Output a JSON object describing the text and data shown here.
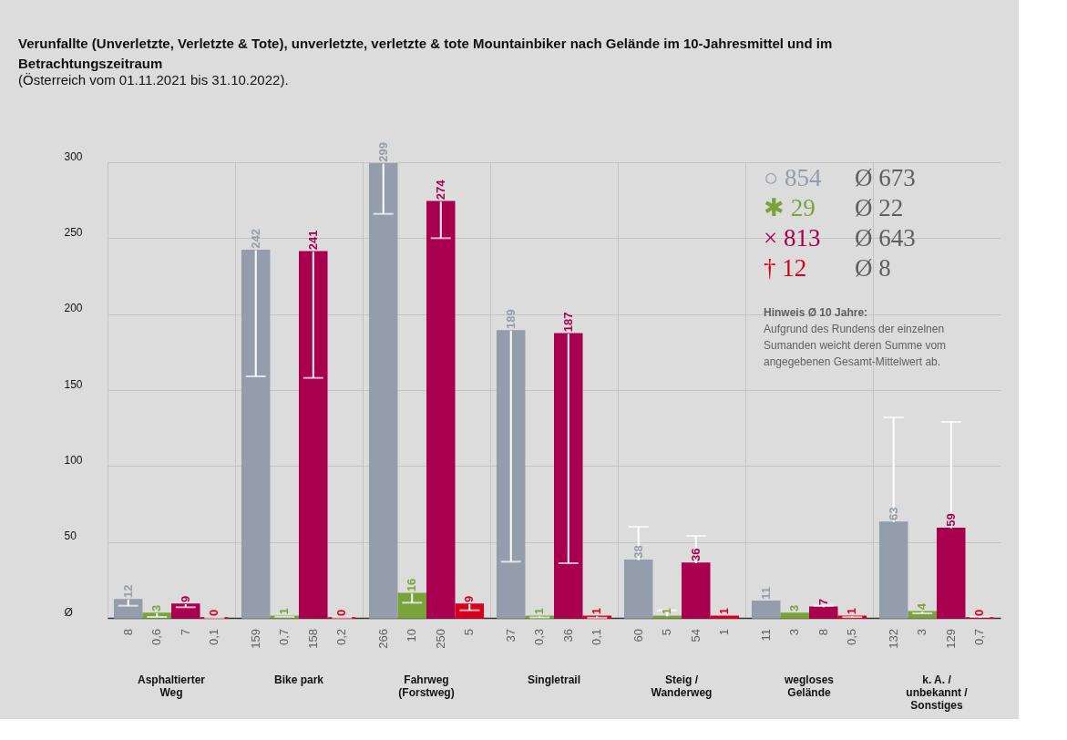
{
  "chart_data": {
    "type": "bar",
    "title": "Verunfallte (Unverletzte, Verletzte & Tote), unverletzte, verletzte & tote Mountainbiker nach Gelände im 10-Jahresmittel und im Betrachtungszeitraum",
    "subtitle": "(Österreich vom 01.11.2021 bis 31.10.2022).",
    "categories": [
      "Asphaltierter Weg",
      "Bike park",
      "Fahrweg (Forstweg)",
      "Singletrail",
      "Steig / Wanderweg",
      "wegloses Gelände",
      "k. A. / unbekannt / Sonstiges"
    ],
    "series": [
      {
        "color": "#939dab",
        "values": [
          12,
          242,
          299,
          189,
          38,
          11,
          63
        ],
        "errors": [
          [
            8,
            12
          ],
          [
            159,
            242
          ],
          [
            266,
            299
          ],
          [
            37,
            189
          ],
          [
            38,
            60
          ],
          [
            11,
            11
          ],
          [
            63,
            132
          ]
        ]
      },
      {
        "color": "#7aa33c",
        "values": [
          3,
          1,
          16,
          1,
          1,
          3,
          4
        ],
        "errors": [
          [
            0.6,
            3
          ],
          [
            0.7,
            1
          ],
          [
            10,
            16
          ],
          [
            0.3,
            1
          ],
          [
            1,
            5
          ],
          [
            3,
            3
          ],
          [
            3,
            4
          ]
        ]
      },
      {
        "color": "#a8004f",
        "values": [
          9,
          241,
          274,
          187,
          36,
          7,
          59
        ],
        "errors": [
          [
            7,
            9
          ],
          [
            158,
            241
          ],
          [
            250,
            274
          ],
          [
            36,
            187
          ],
          [
            36,
            54
          ],
          [
            7,
            8
          ],
          [
            59,
            129
          ]
        ]
      },
      {
        "color": "#d7001e",
        "values": [
          0,
          0,
          9,
          1,
          1,
          1,
          0
        ],
        "errors": [
          [
            0,
            0.1
          ],
          [
            0,
            0.2
          ],
          [
            5,
            9
          ],
          [
            0.1,
            1
          ],
          [
            1,
            1
          ],
          [
            0.5,
            1
          ],
          [
            0,
            0.7
          ]
        ]
      }
    ],
    "data_labels": true,
    "ylim": [
      0,
      300
    ],
    "yticks": [
      {
        "value": 0,
        "label": "Ø"
      },
      50,
      100,
      150,
      200,
      250,
      300
    ],
    "grid": true,
    "annotations": [
      "8",
      "0,6",
      "7",
      "0,1",
      "159",
      "0,7",
      "158",
      "0,2",
      "266",
      "10",
      "250",
      "5",
      "37",
      "0,3",
      "36",
      "0,1",
      "60",
      "5",
      "54",
      "1",
      "11",
      "3",
      "8",
      "0,5",
      "132",
      "3",
      "129",
      "0,7",
      "○ 854",
      "Ø 673",
      "✱ 29",
      "Ø 22",
      "× 813",
      "Ø 643",
      "† 12",
      "Ø 8",
      "Hinweis Ø 10 Jahre:",
      "Aufgrund des Rundens der einzelnen Sumanden weicht deren Summe vom angegebenen Gesamt-Mittelwert ab."
    ]
  }
}
